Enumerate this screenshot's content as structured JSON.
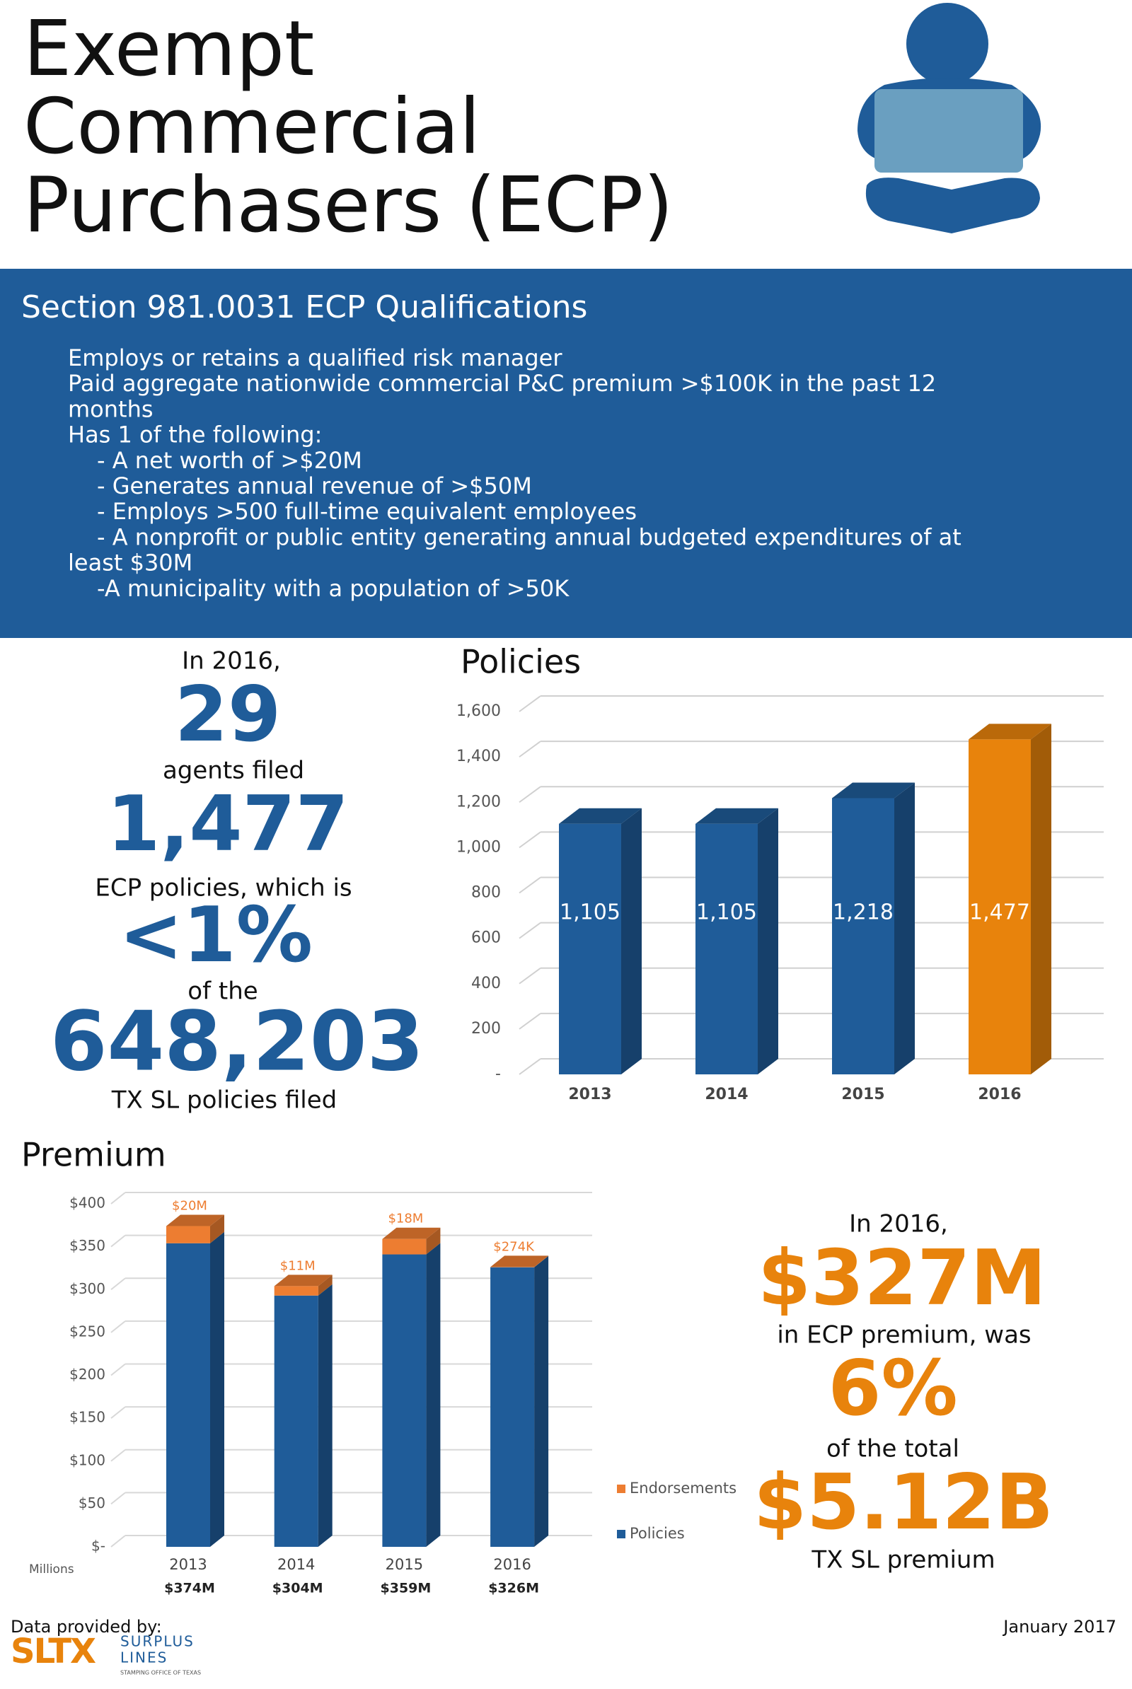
{
  "title_lines": [
    "Exempt",
    "Commercial",
    "Purchasers (ECP)"
  ],
  "qualifications": {
    "title": "Section 981.0031 ECP Qualifications",
    "lines": [
      "Employs or retains a qualified risk manager",
      "Paid aggregate nationwide commercial P&C premium >$100K in the past 12",
      "months",
      "Has 1 of the following:",
      "- A net worth of >$20M",
      "- Generates annual revenue of >$50M",
      "- Employs >500 full-time equivalent employees",
      "- A nonprofit or public entity generating annual budgeted expenditures of at",
      "least $30M",
      "-A municipality with a population of >50K"
    ]
  },
  "left_stats": {
    "intro": "In 2016,",
    "agents": "29",
    "agents_label": "agents filed",
    "policies": "1,477",
    "policies_label": "ECP policies, which is",
    "share": "<1%",
    "share_label": "of the",
    "total": "648,203",
    "total_label": "TX SL policies filed"
  },
  "chart_data": [
    {
      "type": "bar",
      "title": "Policies",
      "categories": [
        "2013",
        "2014",
        "2015",
        "2016"
      ],
      "values": [
        1105,
        1105,
        1218,
        1477
      ],
      "value_labels": [
        "1,105",
        "1,105",
        "1,218",
        "1,477"
      ],
      "colors": [
        "#1f5c99",
        "#1f5c99",
        "#1f5c99",
        "#e8830c"
      ],
      "ylim": [
        0,
        1600
      ],
      "yticks": [
        {
          "value": 0,
          "label": "-"
        },
        200,
        400,
        600,
        800,
        {
          "value": 1000,
          "label": "1,000"
        },
        {
          "value": 1200,
          "label": "1,200"
        },
        {
          "value": 1400,
          "label": "1,400"
        },
        {
          "value": 1600,
          "label": "1,600"
        }
      ],
      "grid": true
    },
    {
      "type": "stacked_bar",
      "title": "Premium",
      "y_unit_label": "Millions",
      "categories": [
        "2013",
        "2014",
        "2015",
        "2016"
      ],
      "category_totals": [
        "$374M",
        "$304M",
        "$359M",
        "$326M"
      ],
      "series": [
        {
          "name": "Policies",
          "color": "#1f5c99",
          "values": [
            354,
            293,
            341,
            326
          ]
        },
        {
          "name": "Endorsements",
          "color": "#ed7d31",
          "values": [
            20,
            11,
            18,
            0.274
          ],
          "value_labels": [
            "$20M",
            "$11M",
            "$18M",
            "$274K"
          ]
        }
      ],
      "ylim": [
        0,
        400
      ],
      "yticks": [
        {
          "value": 0,
          "label": "$-"
        },
        {
          "value": 50,
          "label": "$50"
        },
        {
          "value": 100,
          "label": "$100"
        },
        {
          "value": 150,
          "label": "$150"
        },
        {
          "value": 200,
          "label": "$200"
        },
        {
          "value": 250,
          "label": "$250"
        },
        {
          "value": 300,
          "label": "$300"
        },
        {
          "value": 350,
          "label": "$350"
        },
        {
          "value": 400,
          "label": "$400"
        }
      ],
      "grid": true,
      "legend": "right"
    }
  ],
  "right_stats": {
    "intro": "In 2016,",
    "premium": "$327M",
    "premium_label": "in ECP premium, was",
    "share": "6%",
    "share_label": "of the total",
    "total": "$5.12B",
    "total_label": "TX SL premium"
  },
  "footer": {
    "provided_by": "Data provided by:",
    "date": "January 2017",
    "logo_mark": "SLTX",
    "logo_line1": "SURPLUS",
    "logo_line2": "LINES",
    "logo_line3": "STAMPING OFFICE OF TEXAS"
  }
}
